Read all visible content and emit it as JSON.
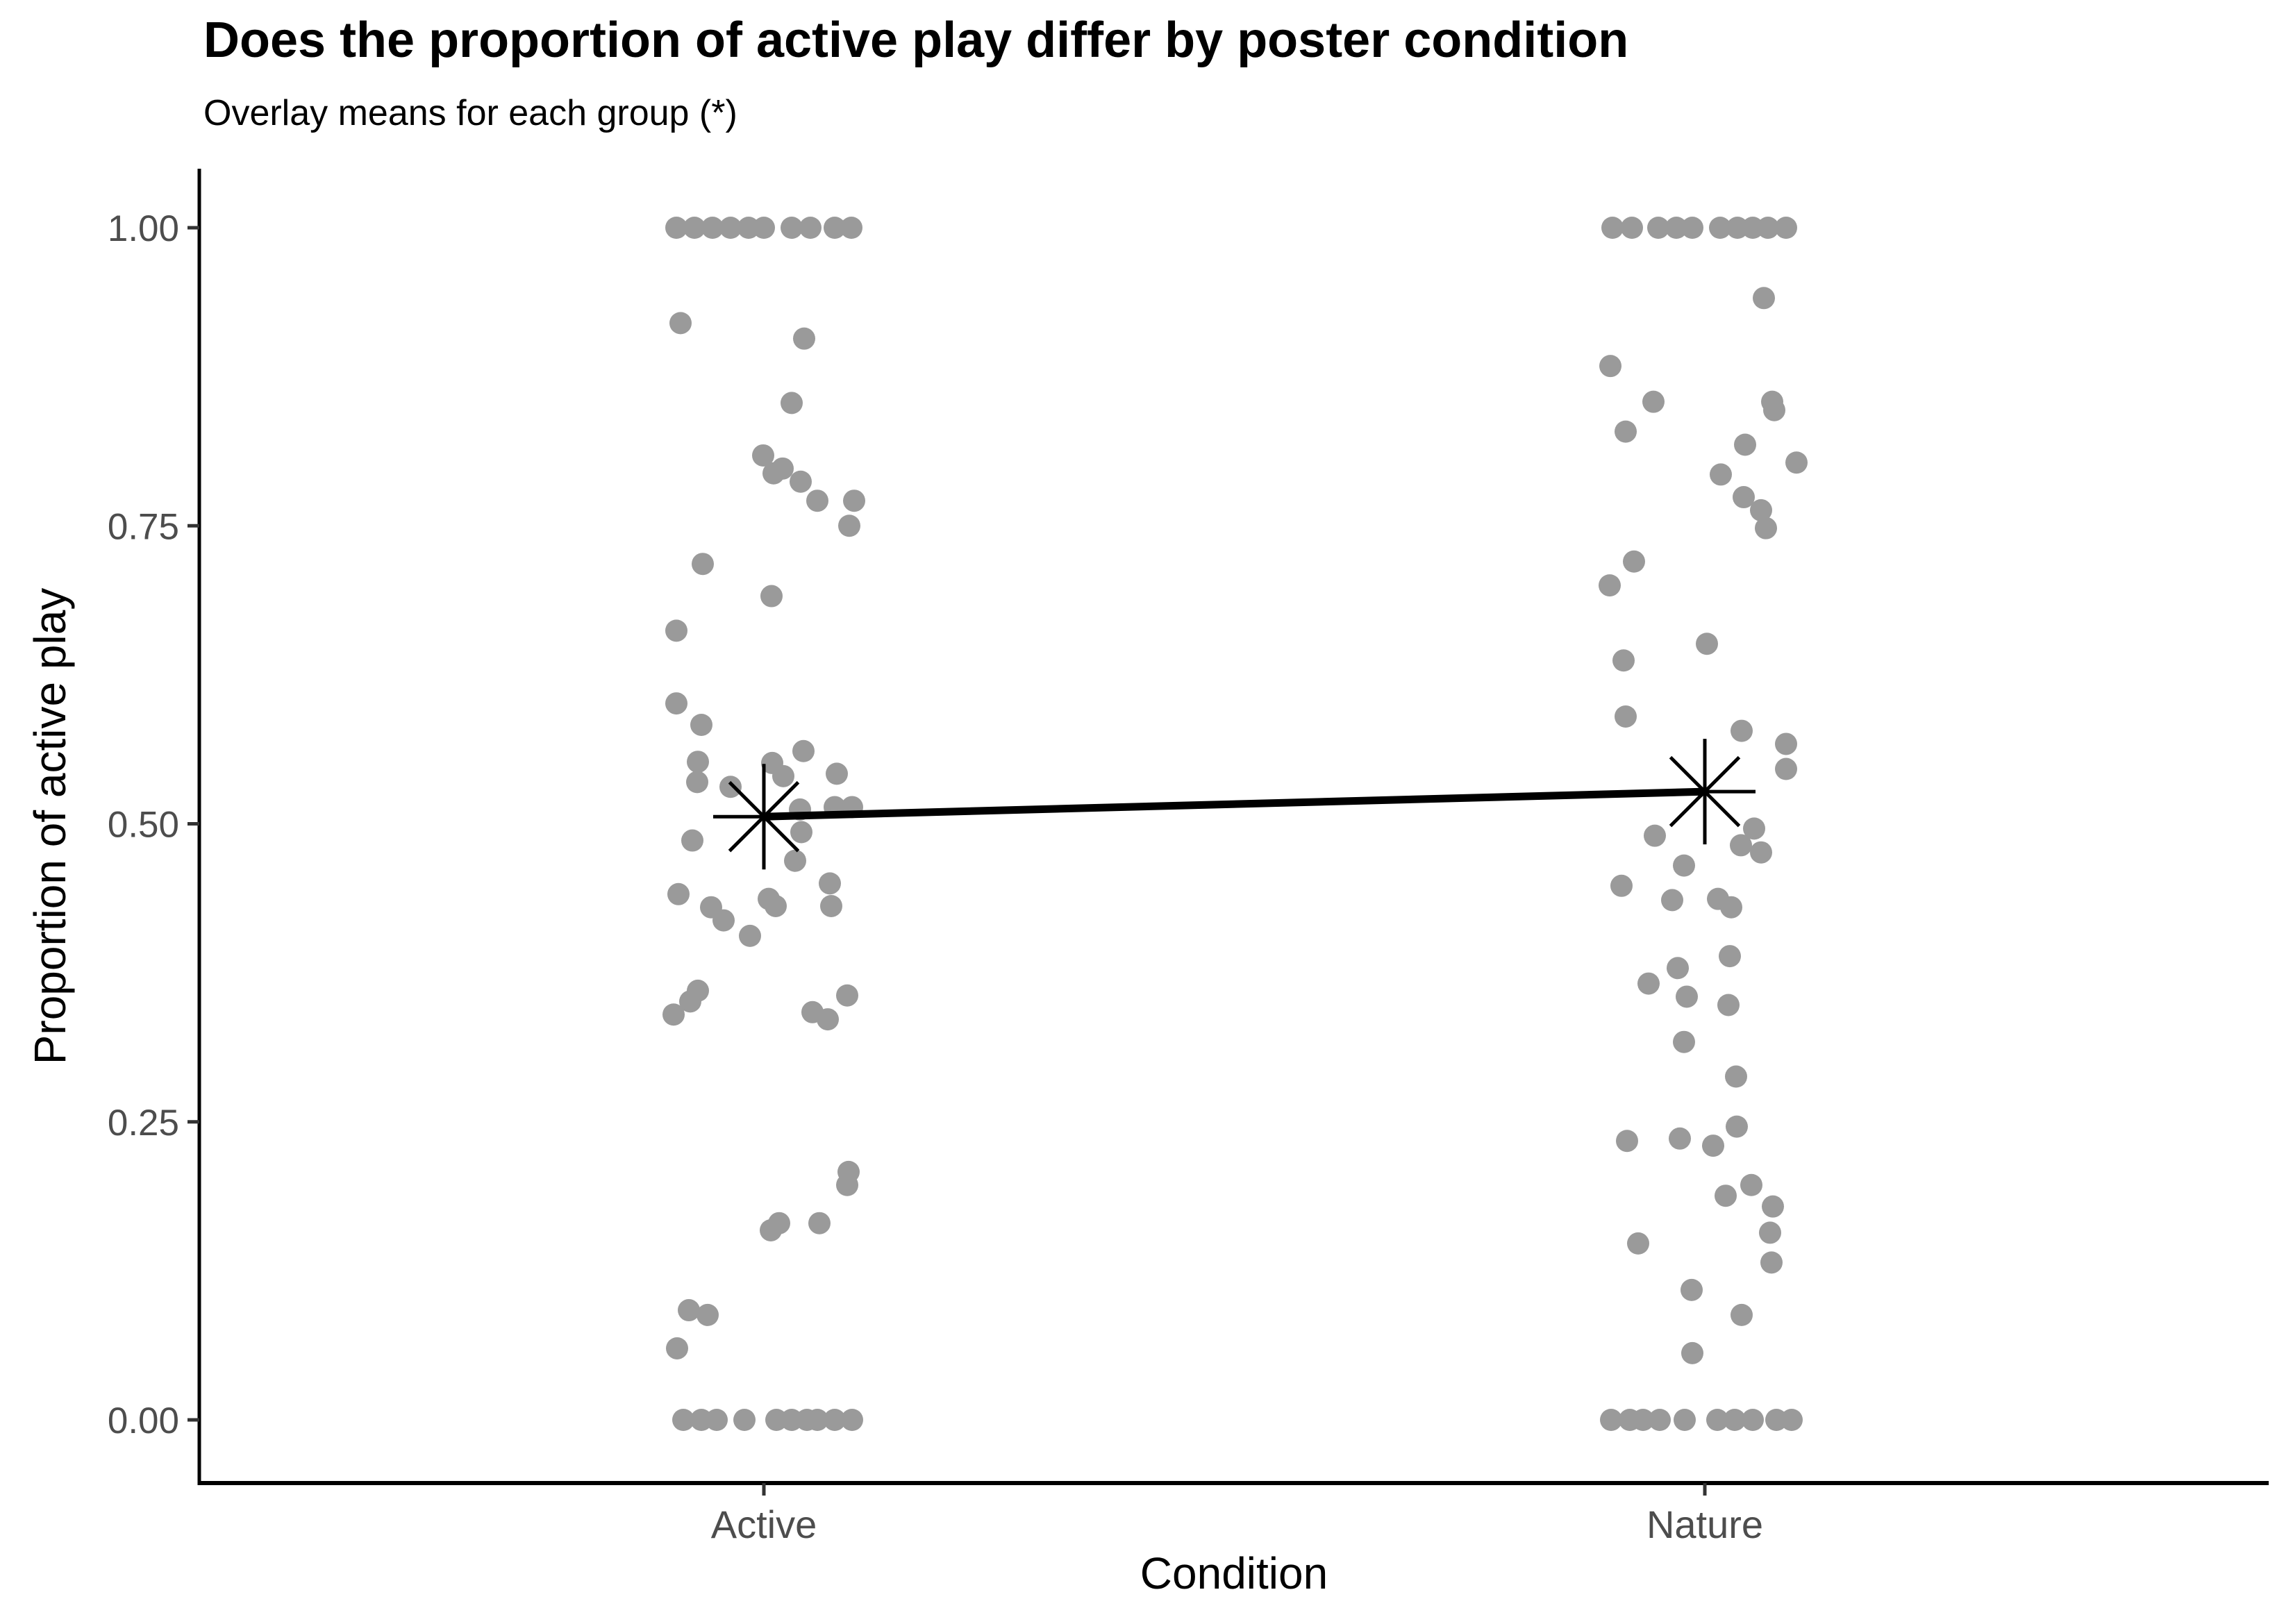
{
  "chart_data": {
    "type": "scatter",
    "title": "Does the proportion of active play differ by poster condition",
    "subtitle": "Overlay means for each group (*)",
    "xlabel": "Condition",
    "ylabel": "Proportion of active play",
    "categories": [
      "Active",
      "Nature"
    ],
    "ytick_labels": [
      "0.00",
      "0.25",
      "0.50",
      "0.75",
      "1.00"
    ],
    "ytick_values": [
      0,
      0.25,
      0.5,
      0.75,
      1
    ],
    "ylim": [
      0,
      1
    ],
    "grid": false,
    "legend": "none",
    "point_color": "#9a9a9a",
    "axis_color": "#000000",
    "tick_label_color": "#4d4d4d",
    "mean_marker": "asterisk",
    "mean_color": "#000000",
    "means": [
      0.506,
      0.527
    ],
    "series": [
      {
        "name": "Active",
        "jitter_points": [
          [
            -126,
            1
          ],
          [
            -100,
            1
          ],
          [
            -74,
            1
          ],
          [
            -48,
            1
          ],
          [
            -22,
            1
          ],
          [
            0,
            1
          ],
          [
            40,
            1
          ],
          [
            67,
            1
          ],
          [
            102,
            1
          ],
          [
            126,
            1
          ],
          [
            -120,
            0.92
          ],
          [
            58,
            0.907
          ],
          [
            40,
            0.853
          ],
          [
            -1,
            0.809
          ],
          [
            27,
            0.798
          ],
          [
            14,
            0.794
          ],
          [
            53,
            0.787
          ],
          [
            77,
            0.771
          ],
          [
            130,
            0.771
          ],
          [
            123,
            0.75
          ],
          [
            -88,
            0.718
          ],
          [
            11,
            0.691
          ],
          [
            -126,
            0.662
          ],
          [
            -126,
            0.601
          ],
          [
            -90,
            0.583
          ],
          [
            57,
            0.561
          ],
          [
            -95,
            0.552
          ],
          [
            12,
            0.551
          ],
          [
            105,
            0.542
          ],
          [
            28,
            0.54
          ],
          [
            -96,
            0.535
          ],
          [
            -48,
            0.531
          ],
          [
            102,
            0.514
          ],
          [
            127,
            0.514
          ],
          [
            52,
            0.512
          ],
          [
            54,
            0.493
          ],
          [
            -103,
            0.486
          ],
          [
            45,
            0.469
          ],
          [
            95,
            0.45
          ],
          [
            -123,
            0.441
          ],
          [
            7,
            0.437
          ],
          [
            97,
            0.431
          ],
          [
            17,
            0.431
          ],
          [
            -76,
            0.43
          ],
          [
            -58,
            0.419
          ],
          [
            -20,
            0.406
          ],
          [
            -95,
            0.36
          ],
          [
            120,
            0.356
          ],
          [
            -106,
            0.351
          ],
          [
            70,
            0.342
          ],
          [
            -130,
            0.34
          ],
          [
            92,
            0.336
          ],
          [
            122,
            0.208
          ],
          [
            120,
            0.197
          ],
          [
            22,
            0.165
          ],
          [
            80,
            0.165
          ],
          [
            10,
            0.159
          ],
          [
            -108,
            0.092
          ],
          [
            -81,
            0.088
          ],
          [
            -125,
            0.06
          ],
          [
            -116,
            0
          ],
          [
            -90,
            0
          ],
          [
            -68,
            0
          ],
          [
            -28,
            0
          ],
          [
            18,
            0
          ],
          [
            40,
            0
          ],
          [
            62,
            0
          ],
          [
            77,
            0
          ],
          [
            102,
            0
          ],
          [
            127,
            0
          ]
        ]
      },
      {
        "name": "Nature",
        "jitter_points": [
          [
            -133,
            1
          ],
          [
            -105,
            1
          ],
          [
            -67,
            1
          ],
          [
            -41,
            1
          ],
          [
            -18,
            1
          ],
          [
            22,
            1
          ],
          [
            47,
            1
          ],
          [
            69,
            1
          ],
          [
            91,
            1
          ],
          [
            117,
            1
          ],
          [
            85,
            0.941
          ],
          [
            -136,
            0.884
          ],
          [
            -74,
            0.854
          ],
          [
            97,
            0.854
          ],
          [
            100,
            0.847
          ],
          [
            -114,
            0.829
          ],
          [
            58,
            0.818
          ],
          [
            132,
            0.803
          ],
          [
            23,
            0.793
          ],
          [
            56,
            0.774
          ],
          [
            81,
            0.763
          ],
          [
            88,
            0.748
          ],
          [
            -102,
            0.72
          ],
          [
            -137,
            0.7
          ],
          [
            3,
            0.651
          ],
          [
            -117,
            0.637
          ],
          [
            -114,
            0.59
          ],
          [
            53,
            0.578
          ],
          [
            117,
            0.567
          ],
          [
            117,
            0.546
          ],
          [
            71,
            0.496
          ],
          [
            -72,
            0.49
          ],
          [
            52,
            0.482
          ],
          [
            81,
            0.476
          ],
          [
            -30,
            0.465
          ],
          [
            -120,
            0.448
          ],
          [
            19,
            0.437
          ],
          [
            -47,
            0.436
          ],
          [
            38,
            0.43
          ],
          [
            36,
            0.389
          ],
          [
            -39,
            0.379
          ],
          [
            -81,
            0.366
          ],
          [
            -26,
            0.355
          ],
          [
            34,
            0.348
          ],
          [
            -30,
            0.317
          ],
          [
            45,
            0.288
          ],
          [
            46,
            0.246
          ],
          [
            -36,
            0.236
          ],
          [
            -112,
            0.234
          ],
          [
            12,
            0.23
          ],
          [
            67,
            0.197
          ],
          [
            30,
            0.188
          ],
          [
            98,
            0.179
          ],
          [
            94,
            0.157
          ],
          [
            -96,
            0.148
          ],
          [
            96,
            0.132
          ],
          [
            -19,
            0.109
          ],
          [
            53,
            0.088
          ],
          [
            -18,
            0.056
          ],
          [
            -135,
            0
          ],
          [
            -108,
            0
          ],
          [
            -89,
            0
          ],
          [
            -65,
            0
          ],
          [
            -29,
            0
          ],
          [
            18,
            0
          ],
          [
            43,
            0
          ],
          [
            69,
            0
          ],
          [
            103,
            0
          ],
          [
            125,
            0
          ]
        ]
      }
    ]
  }
}
